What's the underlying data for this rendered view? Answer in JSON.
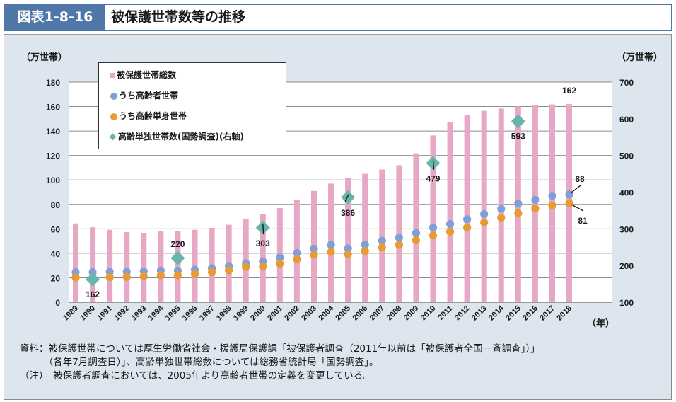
{
  "header": {
    "figure_no": "図表1-8-16",
    "title": "被保護世帯数等の推移"
  },
  "colors": {
    "header_blue": "#4f78a8",
    "panel_bg": "#dde5ee",
    "bar_pink": "#e6a8c4",
    "dot_blue": "#7f9fd8",
    "dot_orange": "#e89a35",
    "diamond_teal": "#6ab5ab"
  },
  "chart_data": {
    "type": "bar+line",
    "title": "被保護世帯数等の推移",
    "ylabel_left": "（万世帯）",
    "ylabel_right": "（万世帯）",
    "xlabel": "（年）",
    "ylim_left": [
      0,
      180
    ],
    "yticks_left": [
      "0",
      "20",
      "40",
      "60",
      "80",
      "100",
      "120",
      "140",
      "160",
      "180"
    ],
    "ylim_right": [
      100,
      700
    ],
    "yticks_right": [
      "100",
      "200",
      "300",
      "400",
      "500",
      "600",
      "700"
    ],
    "grid": true,
    "legend_position": "top-left",
    "categories": [
      "1989",
      "1990",
      "1991",
      "1992",
      "1993",
      "1994",
      "1995",
      "1996",
      "1997",
      "1998",
      "1999",
      "2000",
      "2001",
      "2002",
      "2003",
      "2004",
      "2005",
      "2006",
      "2007",
      "2008",
      "2009",
      "2010",
      "2011",
      "2012",
      "2013",
      "2014",
      "2015",
      "2016",
      "2017",
      "2018"
    ],
    "series": [
      {
        "name": "被保護世帯総数",
        "kind": "bar",
        "axis": "left",
        "values": [
          64.4,
          61.3,
          59.2,
          57.3,
          56.7,
          57.9,
          58.4,
          59.2,
          60.8,
          63.3,
          68.1,
          71.8,
          77.0,
          84.0,
          91.0,
          97.0,
          101.7,
          105.0,
          108.5,
          112.0,
          121.8,
          136.4,
          147.4,
          153.0,
          156.5,
          158.4,
          160.1,
          161.3,
          161.8,
          162.0
        ]
      },
      {
        "name": "うち高齢者世帯",
        "kind": "dot",
        "axis": "left",
        "values": [
          24.6,
          24.6,
          24.9,
          24.9,
          25.2,
          25.9,
          25.8,
          26.6,
          27.8,
          29.5,
          31.8,
          33.4,
          36.5,
          40.2,
          43.7,
          46.9,
          44.0,
          47.1,
          50.2,
          52.9,
          56.5,
          61.0,
          64.0,
          67.9,
          72.1,
          76.3,
          80.6,
          83.7,
          87.0,
          88.0
        ]
      },
      {
        "name": "うち高齢単身世帯",
        "kind": "dot",
        "axis": "left",
        "values": [
          20.2,
          20.2,
          20.5,
          20.7,
          21.1,
          22.1,
          22.1,
          23.0,
          24.6,
          26.1,
          28.8,
          29.3,
          31.5,
          35.2,
          38.7,
          41.1,
          39.2,
          41.9,
          44.8,
          46.9,
          50.6,
          54.6,
          57.7,
          61.0,
          65.2,
          69.1,
          72.7,
          76.6,
          79.1,
          81.0
        ]
      },
      {
        "name": "高齢単独世帯数(国勢調査)(右軸)",
        "kind": "diamond",
        "axis": "right",
        "x": [
          "1990",
          "1995",
          "2000",
          "2005",
          "2010",
          "2015"
        ],
        "values": [
          162,
          220,
          303,
          386,
          479,
          593
        ]
      }
    ],
    "annotations": [
      {
        "text": "162",
        "series": "被保護世帯総数",
        "x": "2018"
      },
      {
        "text": "88",
        "series": "うち高齢者世帯",
        "x": "2018"
      },
      {
        "text": "81",
        "series": "うち高齢単身世帯",
        "x": "2018"
      },
      {
        "text": "162",
        "series": "高齢単独世帯数(国勢調査)(右軸)",
        "x": "1990"
      },
      {
        "text": "220",
        "series": "高齢単独世帯数(国勢調査)(右軸)",
        "x": "1995"
      },
      {
        "text": "303",
        "series": "高齢単独世帯数(国勢調査)(右軸)",
        "x": "2000"
      },
      {
        "text": "386",
        "series": "高齢単独世帯数(国勢調査)(右軸)",
        "x": "2005"
      },
      {
        "text": "479",
        "series": "高齢単独世帯数(国勢調査)(右軸)",
        "x": "2010"
      },
      {
        "text": "593",
        "series": "高齢単独世帯数(国勢調査)(右軸)",
        "x": "2015"
      }
    ]
  },
  "notes": [
    "資料：被保護世帯については厚生労働省社会・援護局保護課「被保護者調査（2011年以前は「被保護者全国一斉調査」）」",
    "　　　（各年7月調査日）」、高齢単独世帯総数については総務省統計局「国勢調査」。",
    "（注）　被保護者調査においては、2005年より高齢者世帯の定義を変更している。"
  ]
}
